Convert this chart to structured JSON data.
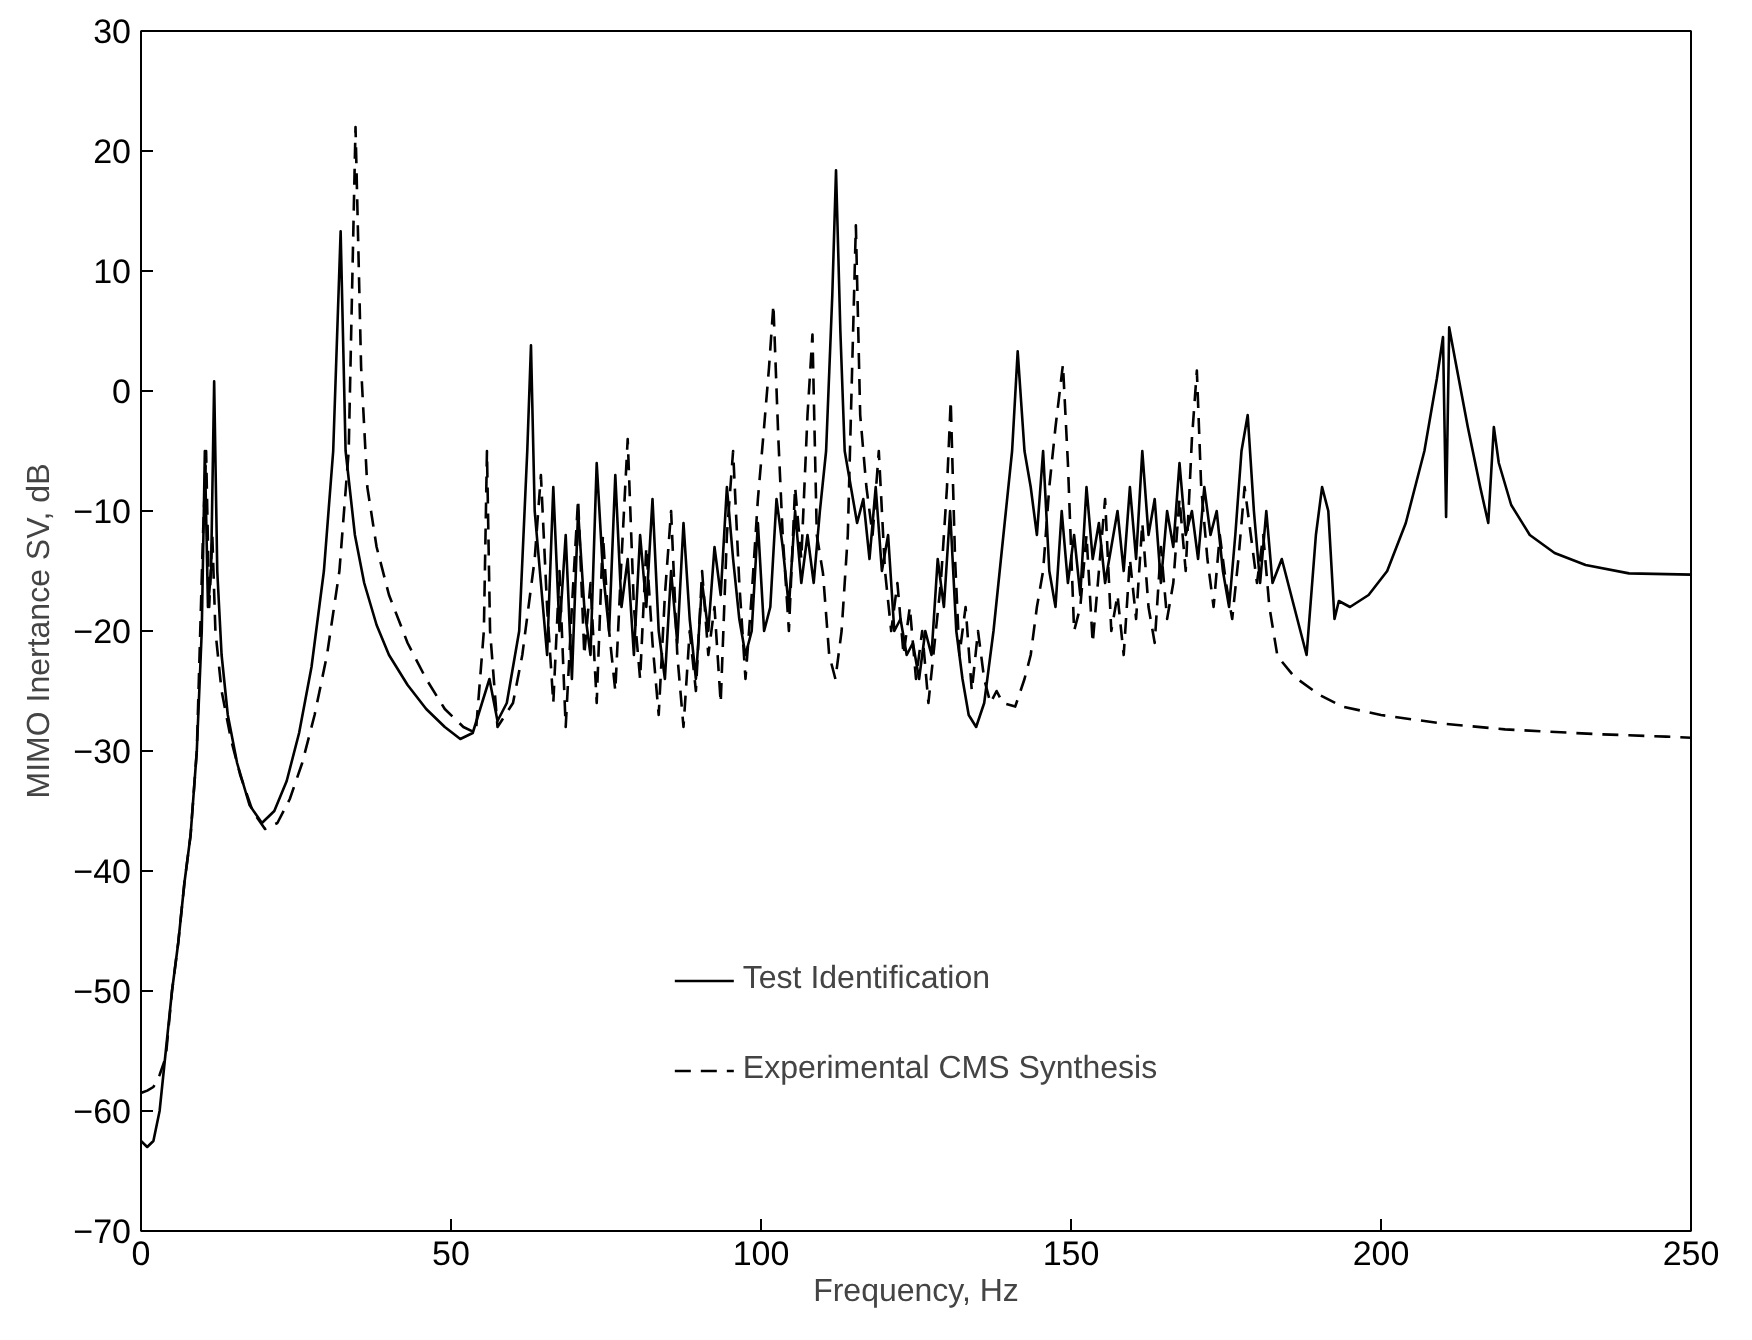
{
  "chart_data": {
    "type": "line",
    "xlabel": "Frequency, Hz",
    "ylabel": "MIMO Inertance SV, dB",
    "xlim": [
      0,
      250
    ],
    "ylim": [
      -70,
      30
    ],
    "xticks": [
      0,
      50,
      100,
      150,
      200,
      250
    ],
    "yticks": [
      -70,
      -60,
      -50,
      -40,
      -30,
      -20,
      -10,
      0,
      10,
      20,
      30
    ],
    "grid": false,
    "legend": "bottom",
    "series": [
      {
        "name": "Test Identification",
        "color": "#000000",
        "line_style": "solid",
        "x": [
          0,
          1,
          2,
          3,
          4,
          5,
          6,
          7,
          8,
          9,
          9.8,
          10.3,
          10.8,
          11.3,
          11.8,
          12.3,
          13,
          14,
          15.5,
          17.5,
          19.5,
          21.5,
          23.5,
          25.5,
          27.5,
          29.5,
          31,
          32.2,
          33,
          34.5,
          36,
          38,
          40,
          43,
          46,
          49,
          51.5,
          53.5,
          55,
          56.2,
          57.5,
          59,
          61,
          62.3,
          62.9,
          63.5,
          64.5,
          65.5,
          66.5,
          67.5,
          68.5,
          69.5,
          70.5,
          71.5,
          72.5,
          73.5,
          74.5,
          75.5,
          76.5,
          77.5,
          78.5,
          79.5,
          80.5,
          81.5,
          82.5,
          83.5,
          84.5,
          85.5,
          86.5,
          87.5,
          88.5,
          89.5,
          90.5,
          91.5,
          92.5,
          93.5,
          94.5,
          95.5,
          96.5,
          97.5,
          98.5,
          99.5,
          100.5,
          101.5,
          102.5,
          103.5,
          104.5,
          105.5,
          106.5,
          107.5,
          108.5,
          109.5,
          110.5,
          111.5,
          112.1,
          112.8,
          113.5,
          114.5,
          115.5,
          116.5,
          117.5,
          118.5,
          119.5,
          120.5,
          121.5,
          122.5,
          123.5,
          124.5,
          125.5,
          126.5,
          127.5,
          128.5,
          129.5,
          130.5,
          131.5,
          132.5,
          133.5,
          134.7,
          136,
          137.5,
          138.5,
          139.5,
          140.5,
          141.4,
          142.5,
          143.5,
          144.5,
          145.5,
          146.5,
          147.5,
          148.5,
          149.5,
          150.5,
          151.5,
          152.5,
          153.5,
          154.5,
          155.5,
          156.5,
          157.5,
          158.5,
          159.5,
          160.5,
          161.5,
          162.5,
          163.5,
          164.5,
          165.5,
          166.5,
          167.5,
          168.5,
          169.5,
          170.5,
          171.5,
          172.5,
          173.5,
          174.5,
          175.5,
          176.5,
          177.5,
          178.5,
          179.5,
          180.5,
          181.5,
          182.5,
          184,
          186,
          188,
          189.5,
          190.5,
          191.5,
          192.5,
          193.2,
          195,
          198,
          201,
          204,
          207,
          209,
          210,
          210.5,
          211,
          212,
          214,
          216,
          217.3,
          218.2,
          219,
          221,
          224,
          228,
          233,
          240,
          250
        ],
        "values": [
          -62.5,
          -63,
          -62.5,
          -60,
          -55,
          -50,
          -46,
          -41,
          -37,
          -30,
          -20,
          -5,
          -18,
          -15,
          0.8,
          -15,
          -22,
          -27,
          -31,
          -34.5,
          -36,
          -35,
          -32.5,
          -28.5,
          -23,
          -15,
          -5,
          13.3,
          -5,
          -12,
          -16,
          -19.5,
          -22,
          -24.5,
          -26.5,
          -28,
          -29,
          -28.5,
          -26,
          -24,
          -27.5,
          -26,
          -20,
          -5,
          3.8,
          -10,
          -16,
          -22,
          -8,
          -20,
          -12,
          -24,
          -10,
          -18,
          -22,
          -6,
          -15,
          -20,
          -7,
          -18,
          -14,
          -22,
          -12,
          -18,
          -9,
          -20,
          -24,
          -15,
          -21,
          -11,
          -19,
          -24,
          -16,
          -20,
          -13,
          -17,
          -8,
          -14,
          -19,
          -22,
          -20,
          -11,
          -20,
          -18,
          -9,
          -13,
          -18,
          -10,
          -16,
          -12,
          -16,
          -10,
          -5,
          8,
          18.4,
          5,
          -5,
          -8,
          -11,
          -9,
          -14,
          -8,
          -15,
          -12,
          -20,
          -19,
          -22,
          -21,
          -24,
          -20,
          -22,
          -14,
          -18,
          -10,
          -20,
          -24,
          -27,
          -28,
          -26,
          -20,
          -15,
          -10,
          -5,
          3.3,
          -5,
          -8,
          -12,
          -5,
          -15,
          -18,
          -10,
          -16,
          -12,
          -17,
          -8,
          -14,
          -11,
          -16,
          -13,
          -10,
          -15,
          -8,
          -14,
          -5,
          -12,
          -9,
          -16,
          -10,
          -13,
          -6,
          -12,
          -10,
          -14,
          -8,
          -12,
          -10,
          -15,
          -18,
          -12,
          -5,
          -2,
          -10,
          -16,
          -10,
          -16,
          -14,
          -18,
          -22,
          -12,
          -8,
          -10,
          -19,
          -17.5,
          -18,
          -17,
          -15,
          -11,
          -5,
          1,
          4.5,
          -10.5,
          5.3,
          2.5,
          -3,
          -8,
          -11,
          -3,
          -6,
          -9.5,
          -12,
          -13.5,
          -14.5,
          -15.2,
          -15.3
        ]
      },
      {
        "name": "Experimental CMS Synthesis",
        "color": "#000000",
        "line_style": "dashed",
        "x": [
          0,
          1,
          2,
          3,
          4,
          5,
          6,
          7,
          8,
          9,
          10,
          10.5,
          11,
          11.5,
          12,
          13,
          14.5,
          16,
          18,
          20,
          22,
          24,
          26,
          28,
          30,
          32,
          33.5,
          34.6,
          35.5,
          36.5,
          38,
          40,
          43,
          46,
          49,
          52,
          54,
          55.3,
          55.8,
          56.3,
          57.5,
          60,
          61.5,
          62.5,
          63.5,
          64.5,
          65.5,
          66.5,
          67.5,
          68.5,
          69.5,
          70.5,
          71.5,
          72.5,
          73.5,
          74.5,
          75.5,
          76.5,
          77.5,
          78.5,
          79.5,
          80.5,
          81.5,
          82.5,
          83.5,
          84.5,
          85.5,
          86.5,
          87.5,
          88.5,
          89.5,
          90.5,
          91.5,
          92.5,
          93.5,
          94.5,
          95.5,
          96.5,
          97.5,
          98.5,
          99.5,
          100.5,
          101.3,
          102,
          102.8,
          103.5,
          104.5,
          105.5,
          106.5,
          107.5,
          108.3,
          109,
          110,
          111,
          112,
          113,
          114,
          115.3,
          116,
          117,
          118,
          119,
          120,
          121,
          122,
          123,
          124,
          125,
          126,
          127,
          128,
          129,
          130,
          130.6,
          131.3,
          132,
          133,
          134,
          135,
          136,
          137,
          138,
          139,
          141,
          142.5,
          143.5,
          144.5,
          145.5,
          146.5,
          147.5,
          148.7,
          149.5,
          150.5,
          151.5,
          152.5,
          153.5,
          154.5,
          155.5,
          156.5,
          157.5,
          158.5,
          159.5,
          160.5,
          161.5,
          162.5,
          163.5,
          164.5,
          165.5,
          166.5,
          167.5,
          168.5,
          169.5,
          170.3,
          171,
          172,
          173,
          174,
          175,
          176,
          177,
          178,
          179,
          180,
          181,
          182,
          183.3,
          186,
          190,
          193.8,
          200,
          209.7,
          220,
          235,
          246,
          250
        ],
        "values": [
          -58.5,
          -58.3,
          -58,
          -57,
          -55.5,
          -50,
          -46,
          -41,
          -37,
          -30,
          -12,
          -5,
          -18,
          -12,
          -20,
          -25,
          -29,
          -32,
          -35,
          -36.5,
          -36,
          -34,
          -31,
          -27,
          -22,
          -15,
          -5,
          22,
          2,
          -8,
          -13,
          -17,
          -21,
          -24,
          -26.5,
          -28,
          -28.5,
          -20,
          -5,
          -20,
          -28,
          -26,
          -22,
          -18,
          -14,
          -7,
          -18,
          -26,
          -15,
          -28,
          -18,
          -9,
          -22,
          -16,
          -26,
          -12,
          -20,
          -25,
          -14,
          -4,
          -18,
          -24,
          -13,
          -21,
          -27,
          -17,
          -10,
          -22,
          -28,
          -20,
          -25,
          -15,
          -22,
          -18,
          -26,
          -12,
          -5,
          -16,
          -24,
          -17,
          -9,
          -3,
          2,
          7.2,
          -4,
          -12,
          -20,
          -8,
          -14,
          -2,
          4.7,
          -12,
          -15.2,
          -22,
          -24,
          -20,
          -12,
          13.8,
          -2,
          -8,
          -12,
          -5,
          -15,
          -20,
          -16,
          -22,
          -18,
          -24,
          -20,
          -26,
          -21,
          -16,
          -8,
          -0.8,
          -14,
          -22,
          -18,
          -25,
          -20,
          -24,
          -26,
          -25,
          -26,
          -26.3,
          -24,
          -22,
          -18,
          -15,
          -8,
          -3,
          2.2,
          -6,
          -20,
          -18,
          -12,
          -21,
          -15,
          -9,
          -20,
          -17,
          -22,
          -14,
          -19,
          -11,
          -18,
          -21,
          -13,
          -19,
          -16,
          -9,
          -15,
          -4,
          1.7,
          -8,
          -14,
          -18,
          -12,
          -16,
          -19,
          -14,
          -8,
          -12,
          -16,
          -12,
          -18,
          -22.1,
          -23.8,
          -25.3,
          -26.3,
          -27,
          -27.7,
          -28.2,
          -28.6,
          -28.8,
          -28.9
        ]
      }
    ]
  }
}
